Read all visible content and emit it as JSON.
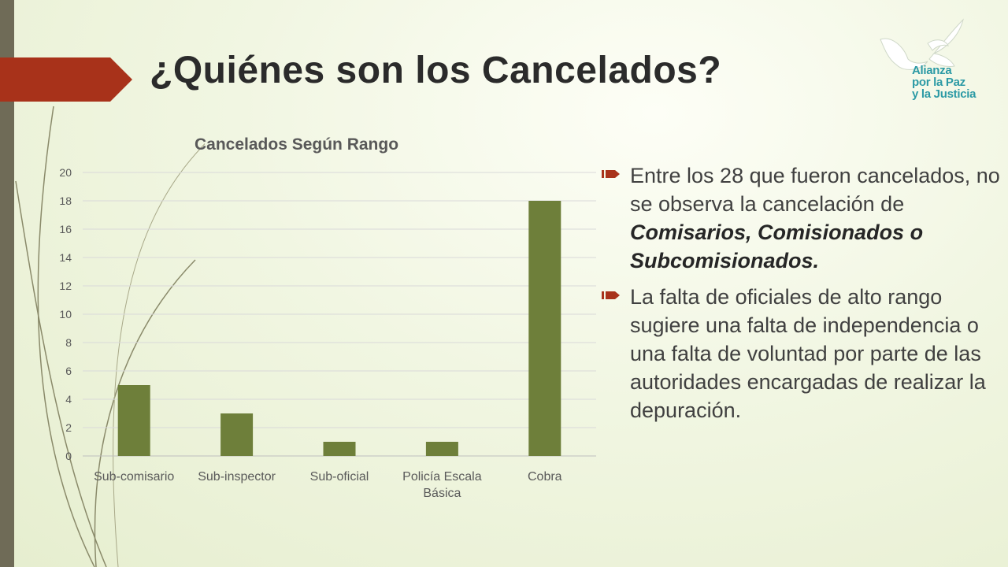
{
  "slide": {
    "title": "¿Quiénes son los Cancelados?",
    "accent_color": "#a8321a",
    "side_bar_color": "#6f6b57"
  },
  "logo": {
    "lines": [
      "Alianza",
      "por la Paz",
      "y la Justicia"
    ],
    "color": "#2c9aa5",
    "icon": "doves-icon"
  },
  "chart_data": {
    "type": "bar",
    "title": "Cancelados Según Rango",
    "categories": [
      "Sub-comisario",
      "Sub-inspector",
      "Sub-oficial",
      "Policía Escala Básica",
      "Cobra"
    ],
    "category_label_lines": [
      [
        "Sub-comisario"
      ],
      [
        "Sub-inspector"
      ],
      [
        "Sub-oficial"
      ],
      [
        "Policía Escala",
        "Básica"
      ],
      [
        "Cobra"
      ]
    ],
    "values": [
      5,
      3,
      1,
      1,
      18
    ],
    "ylim": [
      0,
      20
    ],
    "yticks": [
      0,
      2,
      4,
      6,
      8,
      10,
      12,
      14,
      16,
      18,
      20
    ],
    "xlabel": "",
    "ylabel": "",
    "grid": true,
    "legend": "none",
    "bar_color": "#6e7f3a"
  },
  "bullets": [
    {
      "parts": [
        {
          "text": "Entre los 28 que fueron cancelados, no se observa la cancelación de ",
          "emphasis": false
        },
        {
          "text": "Comisarios, Comisionados o Subcomisionados.",
          "emphasis": true
        }
      ]
    },
    {
      "parts": [
        {
          "text": "La falta de oficiales de alto rango sugiere una falta de independencia o una falta de voluntad por parte de las autoridades encargadas de realizar la depuración.",
          "emphasis": false
        }
      ]
    }
  ]
}
